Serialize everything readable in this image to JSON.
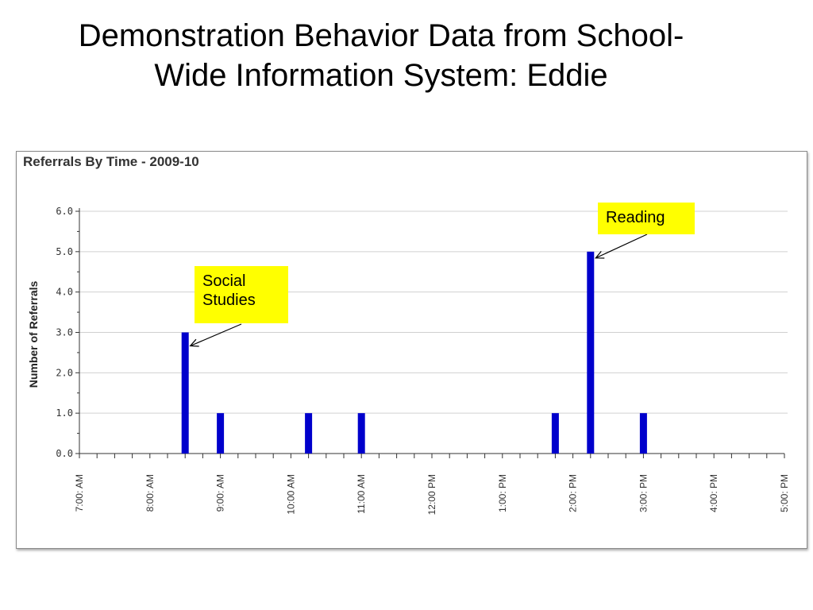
{
  "slide": {
    "title_line1": "Demonstration Behavior Data from School-",
    "title_line2": "Wide Information System: Eddie"
  },
  "annotations": [
    {
      "text": "Social\nStudies",
      "target_category": "8:30 AM"
    },
    {
      "text": "Reading",
      "target_category": "2:15 PM"
    }
  ],
  "colors": {
    "bar": "#0000cc",
    "callout": "#ffff00",
    "grid": "#d0d0d0"
  },
  "chart_data": {
    "type": "bar",
    "title": "Referrals By Time - 2009-10",
    "xlabel": "",
    "ylabel": "Number of Referrals",
    "ylim": [
      0,
      6
    ],
    "yticks": [
      "0.0",
      "1.0",
      "2.0",
      "3.0",
      "4.0",
      "5.0",
      "6.0"
    ],
    "x_axis_start": "7:00 AM",
    "x_axis_end": "5:00 PM",
    "x_tick_labels": [
      "7:00: AM",
      "8:00: AM",
      "9:00: AM",
      "10:00 AM",
      "11:00 AM",
      "12:00 PM",
      "1:00: PM",
      "2:00: PM",
      "3:00: PM",
      "4:00: PM",
      "5:00: PM"
    ],
    "x_tick_interval_minutes": 15,
    "grid": true,
    "legend": "none",
    "bars": [
      {
        "time": "8:30 AM",
        "value": 3
      },
      {
        "time": "9:00 AM",
        "value": 1
      },
      {
        "time": "10:15 AM",
        "value": 1
      },
      {
        "time": "11:00 AM",
        "value": 1
      },
      {
        "time": "1:45 PM",
        "value": 1
      },
      {
        "time": "2:15 PM",
        "value": 5
      },
      {
        "time": "3:00 PM",
        "value": 1
      }
    ]
  }
}
